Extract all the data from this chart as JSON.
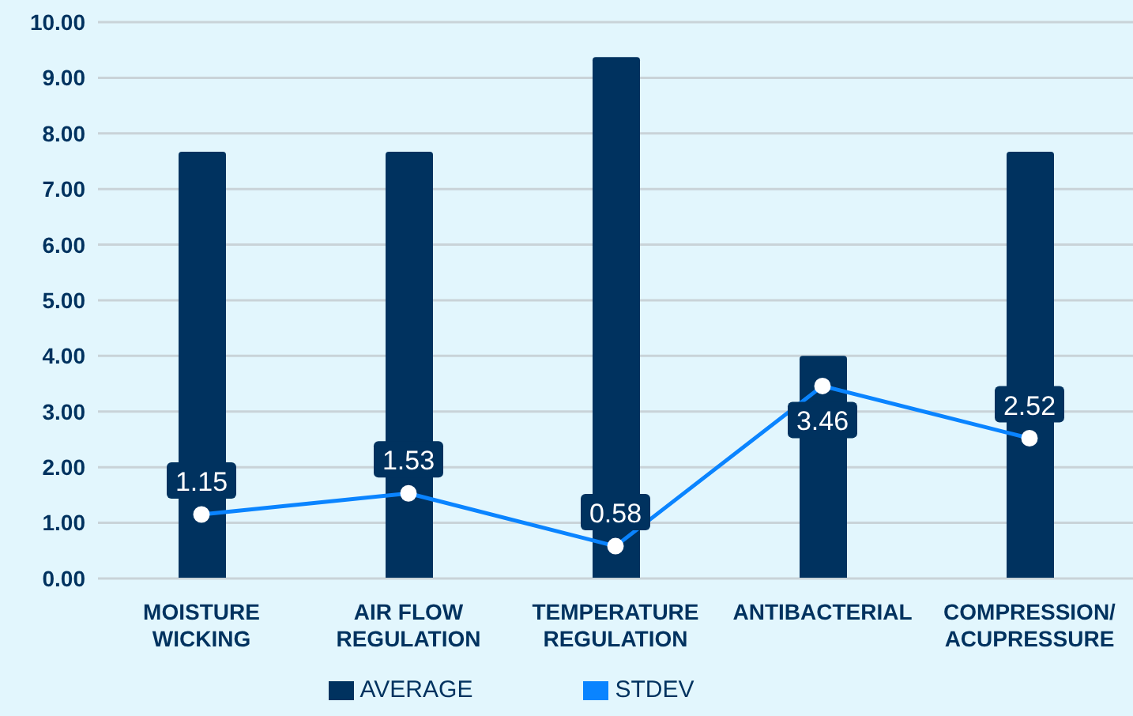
{
  "chart_data": {
    "type": "bar",
    "categories": [
      "MOISTURE WICKING",
      "AIR FLOW REGULATION",
      "TEMPERATURE REGULATION",
      "ANTIBACTERIAL",
      "COMPRESSION/ACUPRESSURE"
    ],
    "series": [
      {
        "name": "AVERAGE",
        "color": "#00325f",
        "values": [
          7.67,
          7.67,
          9.37,
          4.0,
          7.67
        ]
      },
      {
        "name": "STDEV",
        "type": "line",
        "color": "#0a84ff",
        "values": [
          1.15,
          1.53,
          0.58,
          3.46,
          2.52
        ],
        "value_labels": [
          "1.15",
          "1.53",
          "0.58",
          "3.46",
          "2.52"
        ]
      }
    ],
    "ylim": [
      0,
      10
    ],
    "yticks": [
      {
        "value": 0,
        "label": "0.00"
      },
      {
        "value": 1,
        "label": "1.00"
      },
      {
        "value": 2,
        "label": "2.00"
      },
      {
        "value": 3,
        "label": "3.00"
      },
      {
        "value": 4,
        "label": "4.00"
      },
      {
        "value": 5,
        "label": "5.00"
      },
      {
        "value": 6,
        "label": "6.00"
      },
      {
        "value": 7,
        "label": "7.00"
      },
      {
        "value": 8,
        "label": "8.00"
      },
      {
        "value": 9,
        "label": "9.00"
      },
      {
        "value": 10,
        "label": "10.00"
      }
    ],
    "grid": "y",
    "legend": "bottom",
    "marker": "circle",
    "line_style": "solid"
  }
}
